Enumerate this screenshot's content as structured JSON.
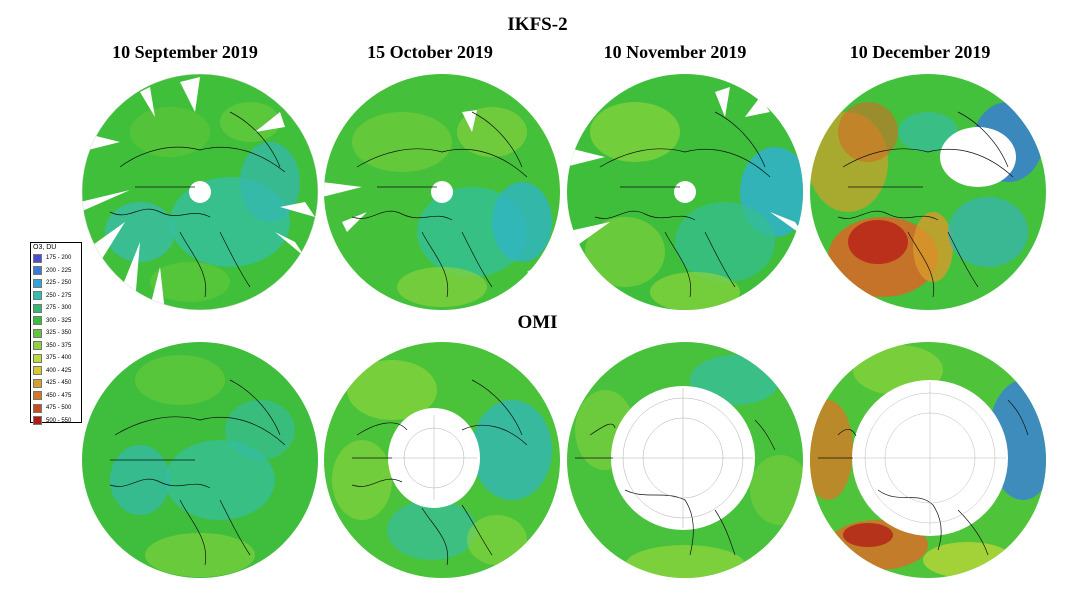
{
  "rows": [
    {
      "title": "IKFS-2"
    },
    {
      "title": "OMI"
    }
  ],
  "columns": [
    {
      "title": "10 September 2019"
    },
    {
      "title": "15 October 2019"
    },
    {
      "title": "10 November 2019"
    },
    {
      "title": "10 December 2019"
    }
  ],
  "legend": {
    "title": "O3, DU",
    "items": [
      {
        "label": "175 - 200",
        "color": "#4a4ed0"
      },
      {
        "label": "200 - 225",
        "color": "#3c7ad8"
      },
      {
        "label": "225 - 250",
        "color": "#2ea6dc"
      },
      {
        "label": "250 - 275",
        "color": "#2ec0b0"
      },
      {
        "label": "275 - 300",
        "color": "#2fbb74"
      },
      {
        "label": "300 - 325",
        "color": "#35c03c"
      },
      {
        "label": "325 - 350",
        "color": "#5ec83a"
      },
      {
        "label": "350 - 375",
        "color": "#8ed43c"
      },
      {
        "label": "375 - 400",
        "color": "#b8dc38"
      },
      {
        "label": "400 - 425",
        "color": "#d8c830"
      },
      {
        "label": "425 - 450",
        "color": "#d8a02c"
      },
      {
        "label": "450 - 475",
        "color": "#d27826"
      },
      {
        "label": "475 - 500",
        "color": "#c84c1e"
      },
      {
        "label": "500 - 550",
        "color": "#b01c14"
      }
    ]
  }
}
